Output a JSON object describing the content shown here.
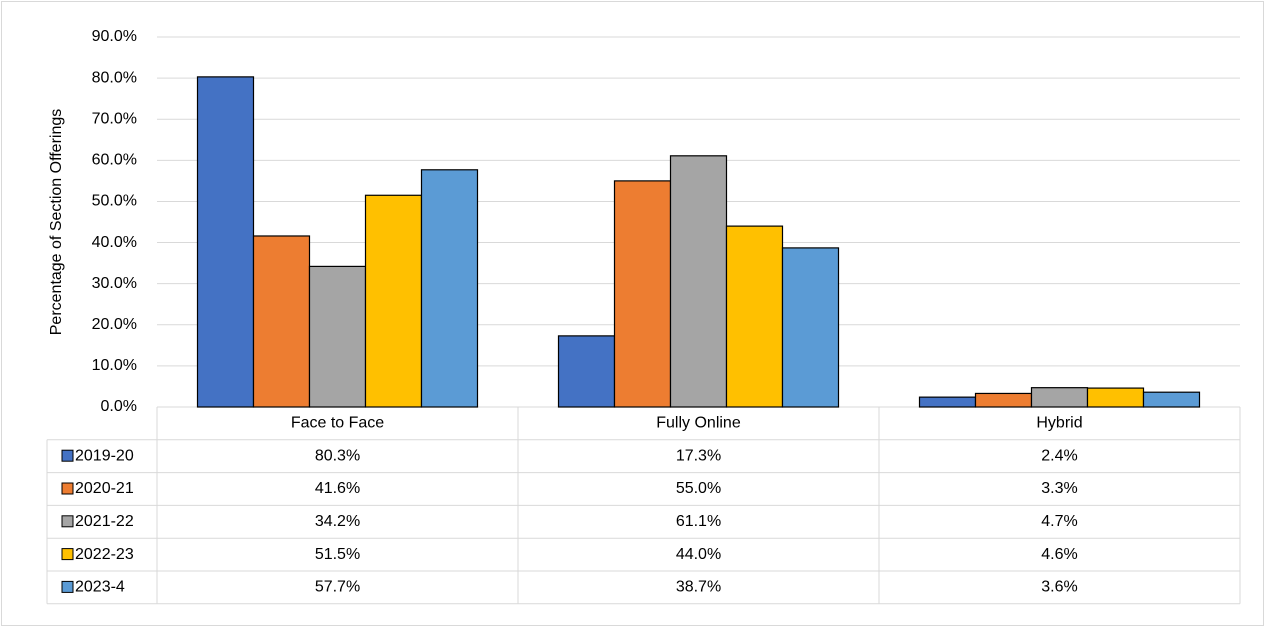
{
  "chart_data": {
    "type": "bar",
    "y_label": "Percentage of Section Offerings",
    "categories": [
      "Face to Face",
      "Fully Online",
      "Hybrid"
    ],
    "series": [
      {
        "name": "2019-20",
        "color": "#4472c4",
        "values": [
          80.3,
          17.3,
          2.4
        ],
        "value_labels": [
          "80.3%",
          "17.3%",
          "2.4%"
        ]
      },
      {
        "name": "2020-21",
        "color": "#ed7d31",
        "values": [
          41.6,
          55.0,
          3.3
        ],
        "value_labels": [
          "41.6%",
          "55.0%",
          "3.3%"
        ]
      },
      {
        "name": "2021-22",
        "color": "#a5a5a5",
        "values": [
          34.2,
          61.1,
          4.7
        ],
        "value_labels": [
          "34.2%",
          "61.1%",
          "4.7%"
        ]
      },
      {
        "name": "2022-23",
        "color": "#ffc000",
        "values": [
          51.5,
          44.0,
          4.6
        ],
        "value_labels": [
          "51.5%",
          "44.0%",
          "4.6%"
        ]
      },
      {
        "name": "2023-4",
        "color": "#5b9bd5",
        "values": [
          57.7,
          38.7,
          3.6
        ],
        "value_labels": [
          "57.7%",
          "38.7%",
          "3.6%"
        ]
      }
    ],
    "ylim": [
      0,
      90
    ],
    "yticks": [
      {
        "value": 0,
        "label": "0.0%"
      },
      {
        "value": 10,
        "label": "10.0%"
      },
      {
        "value": 20,
        "label": "20.0%"
      },
      {
        "value": 30,
        "label": "30.0%"
      },
      {
        "value": 40,
        "label": "40.0%"
      },
      {
        "value": 50,
        "label": "50.0%"
      },
      {
        "value": 60,
        "label": "60.0%"
      },
      {
        "value": 70,
        "label": "70.0%"
      },
      {
        "value": 80,
        "label": "80.0%"
      },
      {
        "value": 90,
        "label": "90.0%"
      }
    ],
    "grid": true
  }
}
